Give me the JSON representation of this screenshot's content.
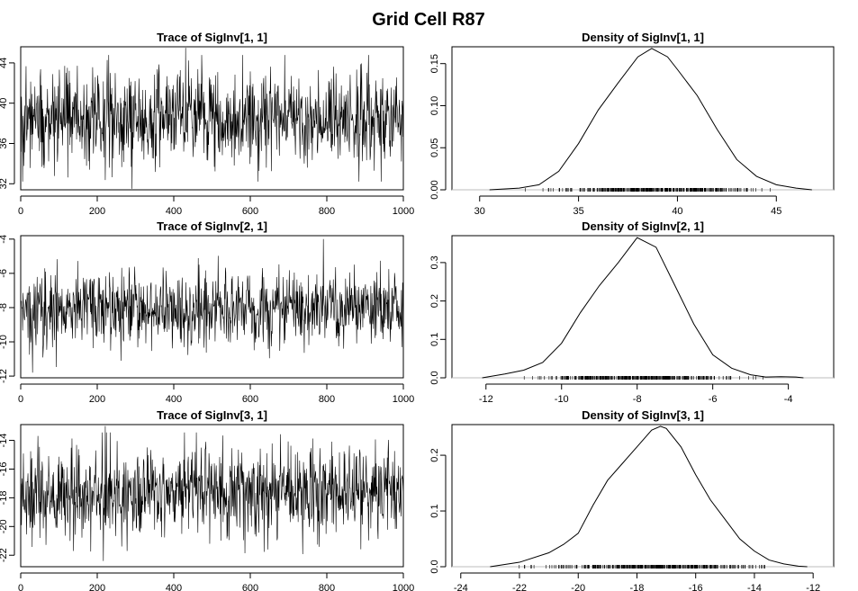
{
  "page_title": "Grid Cell R87",
  "chart_data": [
    {
      "type": "line",
      "title": "Trace of SigInv[1, 1]",
      "xlim": [
        0,
        1000
      ],
      "xticks": [
        0,
        200,
        400,
        600,
        800,
        1000
      ],
      "ylim": [
        31.4,
        45.6
      ],
      "yticks": [
        32,
        36,
        40,
        44
      ],
      "series_summary": {
        "n": 1000,
        "mean": 38.6,
        "sd": 2.4,
        "min": 31.5,
        "max": 45.5,
        "min_at": 290,
        "max_at": 430
      }
    },
    {
      "type": "line",
      "title": "Density of SigInv[1, 1]",
      "xlim": [
        28.6,
        47.9
      ],
      "xticks": [
        30,
        35,
        40,
        45
      ],
      "ylim": [
        0,
        0.17
      ],
      "yticks": [
        0.0,
        0.05,
        0.1,
        0.15
      ],
      "curve": {
        "x": [
          30.5,
          32,
          33,
          34,
          35,
          36,
          37,
          38,
          38.7,
          39.5,
          40,
          41,
          42,
          43,
          44,
          45,
          46,
          46.8
        ],
        "y": [
          0.0,
          0.002,
          0.006,
          0.022,
          0.055,
          0.095,
          0.127,
          0.158,
          0.168,
          0.158,
          0.143,
          0.112,
          0.072,
          0.036,
          0.016,
          0.006,
          0.002,
          0.0
        ]
      },
      "rug_range": [
        31.5,
        45.5
      ]
    },
    {
      "type": "line",
      "title": "Trace of SigInv[2, 1]",
      "xlim": [
        0,
        1000
      ],
      "xticks": [
        0,
        200,
        400,
        600,
        800,
        1000
      ],
      "ylim": [
        -12.1,
        -3.8
      ],
      "yticks": [
        -12,
        -10,
        -8,
        -6,
        -4
      ],
      "series_summary": {
        "n": 1000,
        "mean": -8.1,
        "sd": 1.1,
        "min": -11.8,
        "max": -4.0,
        "min_at": 30,
        "max_at": 790
      }
    },
    {
      "type": "line",
      "title": "Density of SigInv[2, 1]",
      "xlim": [
        -12.9,
        -2.8
      ],
      "xticks": [
        -12,
        -10,
        -8,
        -6,
        -4
      ],
      "ylim": [
        0,
        0.37
      ],
      "yticks": [
        0.0,
        0.1,
        0.2,
        0.3
      ],
      "curve": {
        "x": [
          -12.1,
          -11.5,
          -11,
          -10.5,
          -10,
          -9.5,
          -9,
          -8.5,
          -8,
          -7.5,
          -7,
          -6.5,
          -6,
          -5.5,
          -5,
          -4.6,
          -4.2,
          -3.8,
          -3.6
        ],
        "y": [
          0.0,
          0.01,
          0.02,
          0.04,
          0.09,
          0.17,
          0.24,
          0.3,
          0.365,
          0.34,
          0.24,
          0.14,
          0.06,
          0.025,
          0.008,
          0.002,
          0.003,
          0.002,
          0.0
        ]
      },
      "rug_range": [
        -11.8,
        -4.0
      ]
    },
    {
      "type": "line",
      "title": "Trace of SigInv[3, 1]",
      "xlim": [
        0,
        1000
      ],
      "xticks": [
        0,
        200,
        400,
        600,
        800,
        1000
      ],
      "ylim": [
        -22.8,
        -12.9
      ],
      "yticks": [
        -22,
        -20,
        -18,
        -16,
        -14
      ],
      "series_summary": {
        "n": 1000,
        "mean": -17.6,
        "sd": 1.5,
        "min": -22.4,
        "max": -13.0,
        "min_at": 215,
        "max_at": 220
      }
    },
    {
      "type": "line",
      "title": "Density of SigInv[3, 1]",
      "xlim": [
        -24.3,
        -11.3
      ],
      "xticks": [
        -24,
        -22,
        -20,
        -18,
        -16,
        -14,
        -12
      ],
      "ylim": [
        0,
        0.255
      ],
      "yticks": [
        0.0,
        0.1,
        0.2
      ],
      "curve": {
        "x": [
          -23,
          -22,
          -21,
          -20.5,
          -20,
          -19.5,
          -19,
          -18.5,
          -18,
          -17.5,
          -17.2,
          -17,
          -16.5,
          -16,
          -15.5,
          -15,
          -14.5,
          -14,
          -13.5,
          -13,
          -12.5,
          -12.2
        ],
        "y": [
          0.0,
          0.008,
          0.025,
          0.04,
          0.06,
          0.11,
          0.155,
          0.185,
          0.215,
          0.245,
          0.252,
          0.248,
          0.215,
          0.165,
          0.12,
          0.085,
          0.05,
          0.028,
          0.012,
          0.005,
          0.001,
          0.0
        ]
      },
      "rug_range": [
        -22.4,
        -13.0
      ]
    }
  ]
}
